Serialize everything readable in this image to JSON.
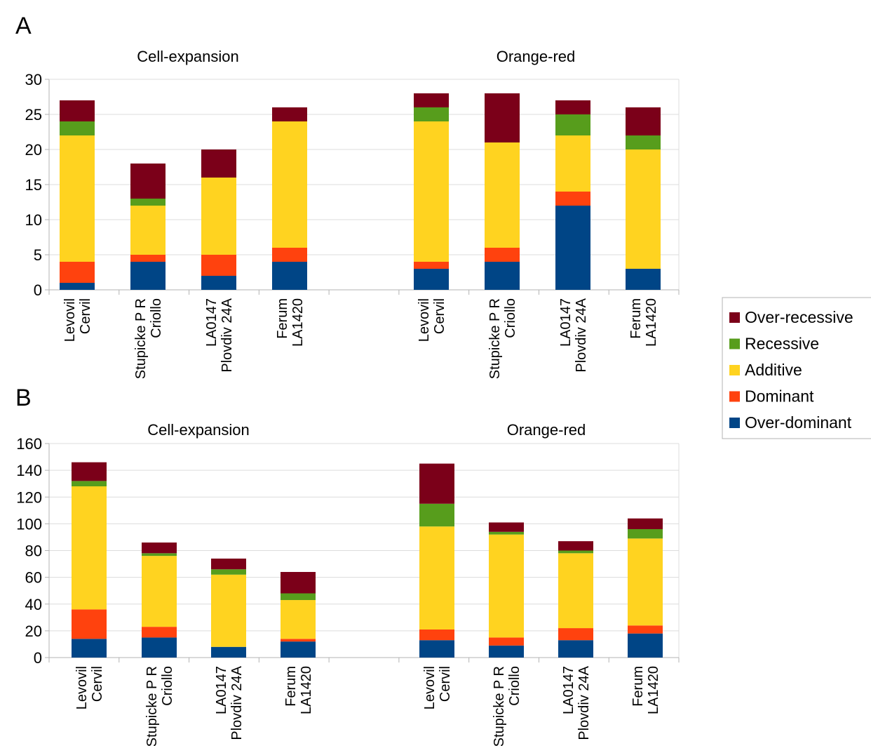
{
  "panel_labels": [
    "A",
    "B"
  ],
  "legend": {
    "entries": [
      {
        "label": "Over-recessive",
        "color": "#7b0019"
      },
      {
        "label": "Recessive",
        "color": "#579d1c"
      },
      {
        "label": "Additive",
        "color": "#ffd320"
      },
      {
        "label": "Dominant",
        "color": "#ff420e"
      },
      {
        "label": "Over-dominant",
        "color": "#004586"
      }
    ]
  },
  "chart_data": [
    {
      "type": "bar",
      "stacked": true,
      "panel": "A",
      "ylim": [
        0,
        30
      ],
      "yticks": [
        0,
        5,
        10,
        15,
        20,
        25,
        30
      ],
      "grid": true,
      "legend_position": "right",
      "stack_order": [
        "Over-dominant",
        "Dominant",
        "Additive",
        "Recessive",
        "Over-recessive"
      ],
      "groups": [
        {
          "title": "Cell-expansion",
          "categories": [
            [
              "Levovil",
              "Cervil"
            ],
            [
              "Stupicke P R",
              "Criollo"
            ],
            [
              "LA0147",
              "Plovdiv 24A"
            ],
            [
              "Ferum",
              "LA1420"
            ]
          ],
          "series": [
            {
              "name": "Over-dominant",
              "values": [
                1,
                4,
                2,
                4
              ]
            },
            {
              "name": "Dominant",
              "values": [
                3,
                1,
                3,
                2
              ]
            },
            {
              "name": "Additive",
              "values": [
                18,
                7,
                11,
                18
              ]
            },
            {
              "name": "Recessive",
              "values": [
                2,
                1,
                0,
                0
              ]
            },
            {
              "name": "Over-recessive",
              "values": [
                3,
                5,
                4,
                2
              ]
            }
          ]
        },
        {
          "title": "Orange-red",
          "categories": [
            [
              "Levovil",
              "Cervil"
            ],
            [
              "Stupicke P R",
              "Criollo"
            ],
            [
              "LA0147",
              "Plovdiv 24A"
            ],
            [
              "Ferum",
              "LA1420"
            ]
          ],
          "series": [
            {
              "name": "Over-dominant",
              "values": [
                3,
                4,
                12,
                3
              ]
            },
            {
              "name": "Dominant",
              "values": [
                1,
                2,
                2,
                0
              ]
            },
            {
              "name": "Additive",
              "values": [
                20,
                15,
                8,
                17
              ]
            },
            {
              "name": "Recessive",
              "values": [
                2,
                0,
                3,
                2
              ]
            },
            {
              "name": "Over-recessive",
              "values": [
                2,
                7,
                2,
                4
              ]
            }
          ]
        }
      ]
    },
    {
      "type": "bar",
      "stacked": true,
      "panel": "B",
      "ylim": [
        0,
        160
      ],
      "yticks": [
        0,
        20,
        40,
        60,
        80,
        100,
        120,
        140,
        160
      ],
      "grid": true,
      "legend_position": "right",
      "stack_order": [
        "Over-dominant",
        "Dominant",
        "Additive",
        "Recessive",
        "Over-recessive"
      ],
      "groups": [
        {
          "title": "Cell-expansion",
          "categories": [
            [
              "Levovil",
              "Cervil"
            ],
            [
              "Stupicke P R",
              "Criollo"
            ],
            [
              "LA0147",
              "Plovdiv 24A"
            ],
            [
              "Ferum",
              "LA1420"
            ]
          ],
          "series": [
            {
              "name": "Over-dominant",
              "values": [
                14,
                15,
                8,
                12
              ]
            },
            {
              "name": "Dominant",
              "values": [
                22,
                8,
                0,
                2
              ]
            },
            {
              "name": "Additive",
              "values": [
                92,
                53,
                54,
                29
              ]
            },
            {
              "name": "Recessive",
              "values": [
                4,
                2,
                4,
                5
              ]
            },
            {
              "name": "Over-recessive",
              "values": [
                14,
                8,
                8,
                16
              ]
            }
          ]
        },
        {
          "title": "Orange-red",
          "categories": [
            [
              "Levovil",
              "Cervil"
            ],
            [
              "Stupicke P R",
              "Criollo"
            ],
            [
              "LA0147",
              "Plovdiv 24A"
            ],
            [
              "Ferum",
              "LA1420"
            ]
          ],
          "series": [
            {
              "name": "Over-dominant",
              "values": [
                13,
                9,
                13,
                18
              ]
            },
            {
              "name": "Dominant",
              "values": [
                8,
                6,
                9,
                6
              ]
            },
            {
              "name": "Additive",
              "values": [
                77,
                77,
                56,
                65
              ]
            },
            {
              "name": "Recessive",
              "values": [
                17,
                2,
                2,
                7
              ]
            },
            {
              "name": "Over-recessive",
              "values": [
                30,
                7,
                7,
                8
              ]
            }
          ]
        }
      ]
    }
  ]
}
